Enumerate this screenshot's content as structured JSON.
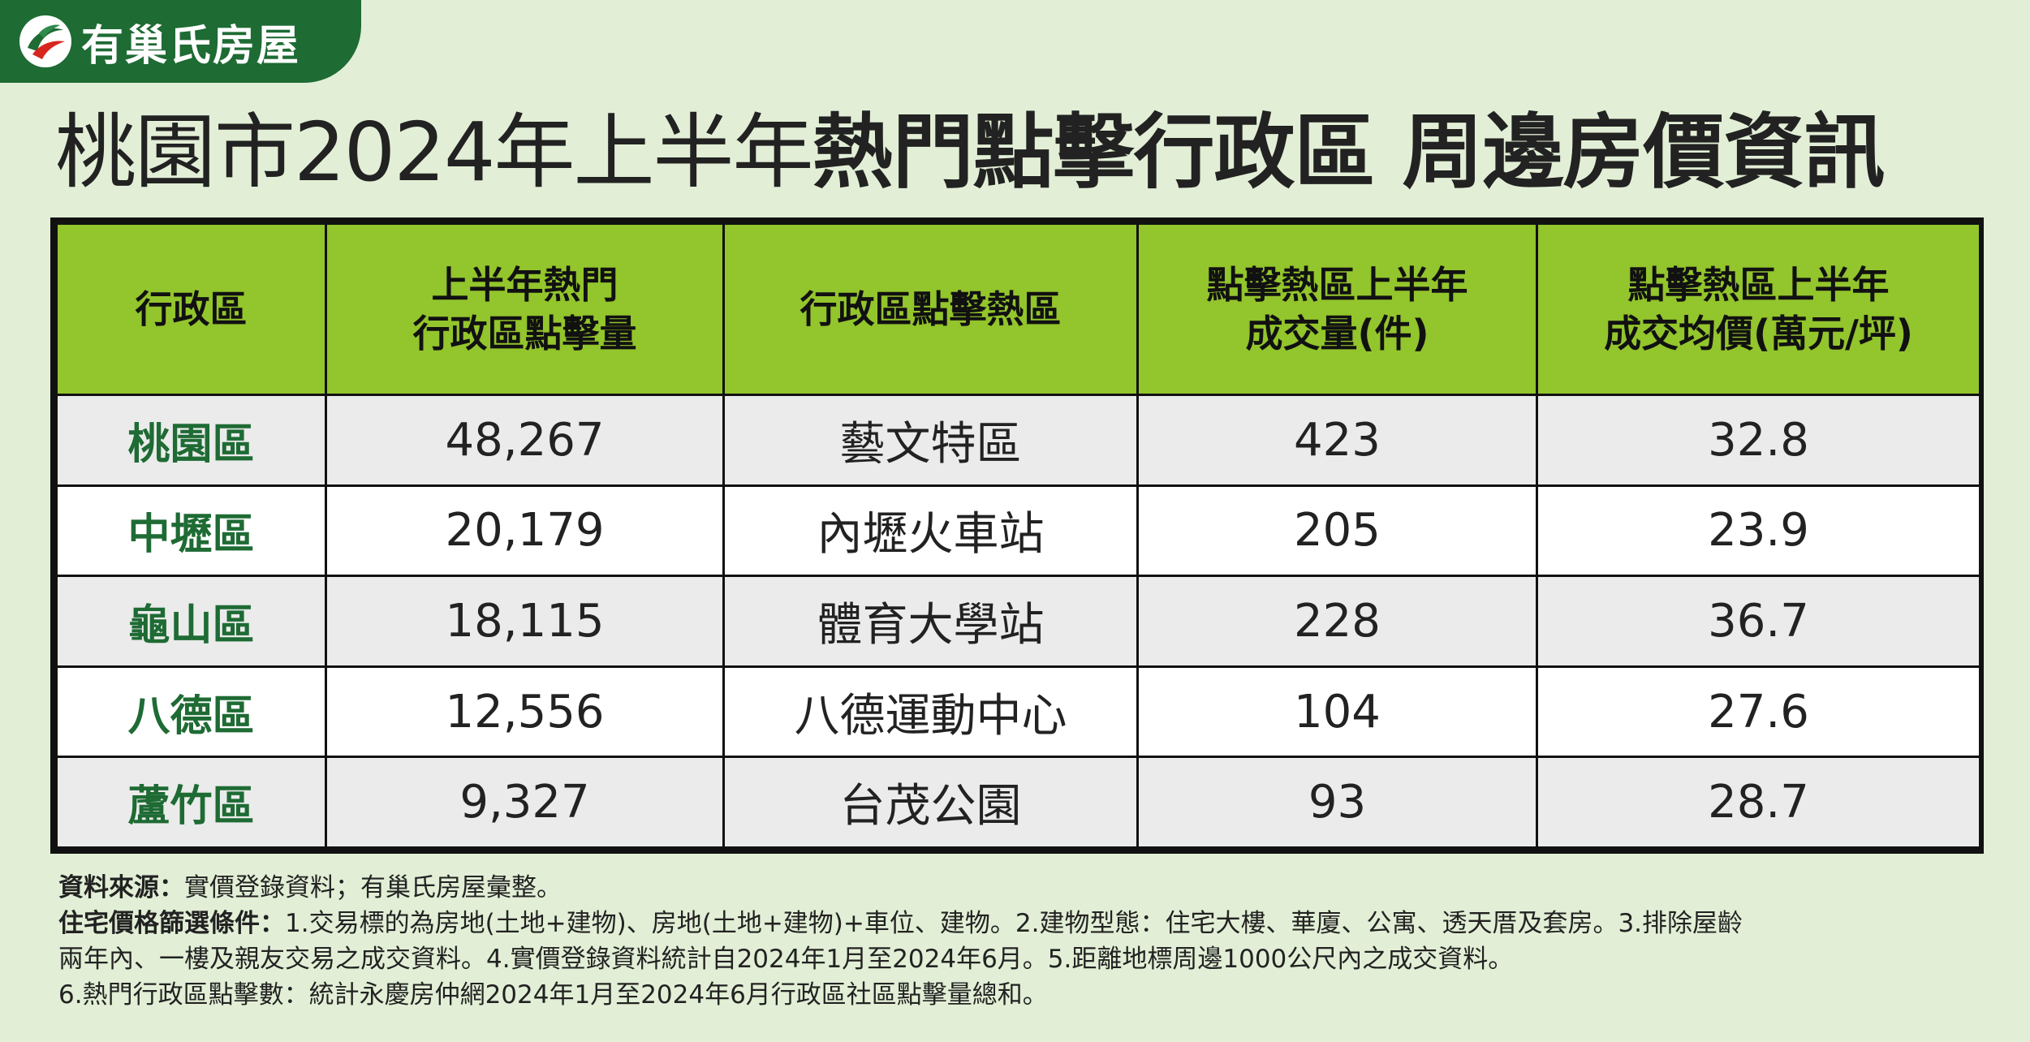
{
  "logo": {
    "text": "有巢氏房屋",
    "icon": "brand-swirl-logo-icon",
    "brand_color": "#1e6b34"
  },
  "title": {
    "light": "桃園市2024年上半年",
    "bold": "熱門點擊行政區 周邊房價資訊"
  },
  "table": {
    "header_color": "#93c52c",
    "headers": [
      [
        "行政區"
      ],
      [
        "上半年熱門",
        "行政區點擊量"
      ],
      [
        "行政區點擊熱區"
      ],
      [
        "點擊熱區上半年",
        "成交量(件)"
      ],
      [
        "點擊熱區上半年",
        "成交均價(萬元/坪)"
      ]
    ],
    "rows": [
      {
        "district": "桃園區",
        "clicks": "48,267",
        "hotspot": "藝文特區",
        "volume": "423",
        "price": "32.8"
      },
      {
        "district": "中壢區",
        "clicks": "20,179",
        "hotspot": "內壢火車站",
        "volume": "205",
        "price": "23.9"
      },
      {
        "district": "龜山區",
        "clicks": "18,115",
        "hotspot": "體育大學站",
        "volume": "228",
        "price": "36.7"
      },
      {
        "district": "八德區",
        "clicks": "12,556",
        "hotspot": "八德運動中心",
        "volume": "104",
        "price": "27.6"
      },
      {
        "district": "蘆竹區",
        "clicks": "9,327",
        "hotspot": "台茂公園",
        "volume": "93",
        "price": "28.7"
      }
    ]
  },
  "notes": {
    "source_label": "資料來源：",
    "source_text": "實價登錄資料；有巢氏房屋彙整。",
    "filter_label": "住宅價格篩選條件：",
    "filter_text_1": "1.交易標的為房地(土地+建物)、房地(土地+建物)+車位、建物。2.建物型態：住宅大樓、華廈、公寓、透天厝及套房。3.排除屋齡",
    "filter_text_2": "兩年內、一樓及親友交易之成交資料。4.實價登錄資料統計自2024年1月至2024年6月。5.距離地標周邊1000公尺內之成交資料。",
    "filter_text_3": "6.熱門行政區點擊數：統計永慶房仲網2024年1月至2024年6月行政區社區點擊量總和。"
  }
}
